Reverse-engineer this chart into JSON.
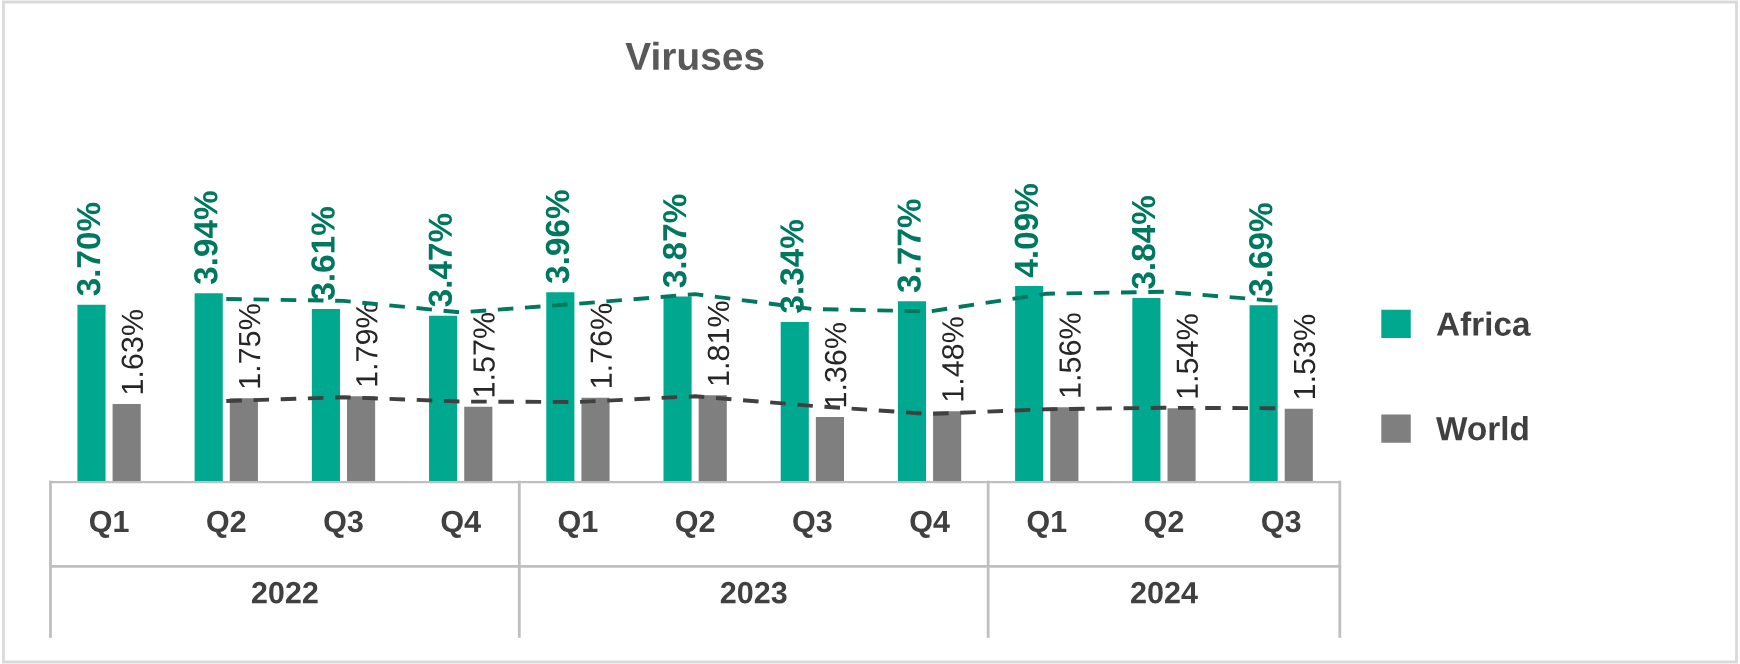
{
  "chart_data": {
    "type": "bar",
    "title": "Viruses",
    "categories": [
      "Q1",
      "Q2",
      "Q3",
      "Q4",
      "Q1",
      "Q2",
      "Q3",
      "Q4",
      "Q1",
      "Q2",
      "Q3"
    ],
    "annotations": [
      "2022",
      "2023",
      "2024"
    ],
    "series": [
      {
        "name": "Africa",
        "color": "#00a88f",
        "values": [
          3.7,
          3.94,
          3.61,
          3.47,
          3.96,
          3.87,
          3.34,
          3.77,
          4.09,
          3.84,
          3.69
        ],
        "value_labels": [
          "3.70%",
          "3.94%",
          "3.61%",
          "3.47%",
          "3.96%",
          "3.87%",
          "3.34%",
          "3.77%",
          "4.09%",
          "3.84%",
          "3.69%"
        ]
      },
      {
        "name": "World",
        "color": "#7f7f7f",
        "values": [
          1.63,
          1.75,
          1.79,
          1.57,
          1.76,
          1.81,
          1.36,
          1.48,
          1.56,
          1.54,
          1.53
        ],
        "value_labels": [
          "1.63%",
          "1.75%",
          "1.79%",
          "1.57%",
          "1.76%",
          "1.81%",
          "1.36%",
          "1.48%",
          "1.56%",
          "1.54%",
          "1.53%"
        ]
      },
      {
        "type": "line",
        "line_style": "dashed",
        "color": "#00785f",
        "values": [
          null,
          3.82,
          3.78,
          3.54,
          3.72,
          3.92,
          3.61,
          3.56,
          3.93,
          3.97,
          3.77
        ]
      },
      {
        "type": "line",
        "line_style": "dashed",
        "color": "#404040",
        "values": [
          null,
          1.69,
          1.77,
          1.68,
          1.67,
          1.79,
          1.59,
          1.42,
          1.52,
          1.55,
          1.54
        ]
      }
    ],
    "tick_labels": "x",
    "grid": false,
    "legend": "right"
  }
}
